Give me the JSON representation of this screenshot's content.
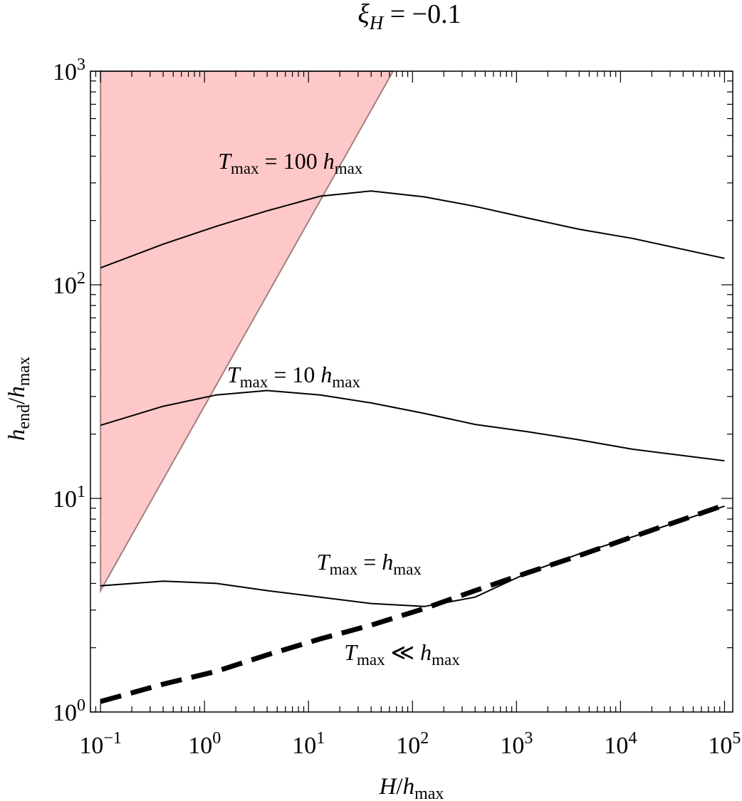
{
  "chart_data": {
    "type": "line",
    "title": "ξH = −0.1",
    "title_main": "ξ",
    "title_sub": "H",
    "title_rest": " = −0.1",
    "xlabel": "H/hmax",
    "ylabel": "hend/hmax",
    "x_scale": "log",
    "y_scale": "log",
    "xlim": [
      0.08,
      120000
    ],
    "ylim": [
      1,
      1000
    ],
    "x_ticks": [
      {
        "base": "10",
        "exp": "−1",
        "value": 0.1
      },
      {
        "base": "10",
        "exp": "0",
        "value": 1
      },
      {
        "base": "10",
        "exp": "1",
        "value": 10
      },
      {
        "base": "10",
        "exp": "2",
        "value": 100
      },
      {
        "base": "10",
        "exp": "3",
        "value": 1000
      },
      {
        "base": "10",
        "exp": "4",
        "value": 10000
      },
      {
        "base": "10",
        "exp": "5",
        "value": 100000
      }
    ],
    "y_ticks": [
      {
        "base": "10",
        "exp": "0",
        "value": 1
      },
      {
        "base": "10",
        "exp": "1",
        "value": 10
      },
      {
        "base": "10",
        "exp": "2",
        "value": 100
      },
      {
        "base": "10",
        "exp": "3",
        "value": 1000
      }
    ],
    "shaded_region": {
      "color": "#ffc8c8",
      "points": [
        [
          0.1,
          3.7
        ],
        [
          0.1,
          1000
        ],
        [
          65,
          1000
        ]
      ]
    },
    "series": [
      {
        "style": "solid",
        "points": [
          [
            0.1,
            120
          ],
          [
            0.4,
            155
          ],
          [
            1.3,
            188
          ],
          [
            4,
            222
          ],
          [
            13,
            260
          ],
          [
            40,
            275
          ],
          [
            130,
            258
          ],
          [
            400,
            233
          ],
          [
            1300,
            205
          ],
          [
            4000,
            182
          ],
          [
            13000,
            165
          ],
          [
            100000,
            133
          ]
        ]
      },
      {
        "style": "solid",
        "points": [
          [
            0.1,
            22
          ],
          [
            0.4,
            27
          ],
          [
            1.3,
            30.5
          ],
          [
            4,
            32
          ],
          [
            13,
            30.5
          ],
          [
            40,
            28
          ],
          [
            130,
            25
          ],
          [
            400,
            22.2
          ],
          [
            1300,
            20.5
          ],
          [
            4000,
            18.8
          ],
          [
            13000,
            17
          ],
          [
            100000,
            15
          ]
        ]
      },
      {
        "style": "solid",
        "points": [
          [
            0.1,
            3.9
          ],
          [
            0.4,
            4.1
          ],
          [
            1.3,
            4.0
          ],
          [
            4,
            3.7
          ],
          [
            13,
            3.45
          ],
          [
            40,
            3.22
          ],
          [
            130,
            3.12
          ],
          [
            400,
            3.45
          ],
          [
            1300,
            4.5
          ],
          [
            4000,
            5.5
          ],
          [
            13000,
            6.6
          ],
          [
            100000,
            9.2
          ]
        ]
      },
      {
        "style": "dashed",
        "points": [
          [
            0.1,
            1.12
          ],
          [
            0.4,
            1.35
          ],
          [
            1.3,
            1.55
          ],
          [
            4,
            1.85
          ],
          [
            13,
            2.2
          ],
          [
            40,
            2.55
          ],
          [
            130,
            3.05
          ],
          [
            400,
            3.7
          ],
          [
            1300,
            4.5
          ],
          [
            4000,
            5.4
          ],
          [
            13000,
            6.6
          ],
          [
            100000,
            9.3
          ]
        ]
      }
    ],
    "annotations": [
      {
        "main": "T",
        "sub": "max",
        "rest": " = 100 ",
        "var": "h",
        "var_sub": "max",
        "x": 1.35,
        "y": 350
      },
      {
        "main": "T",
        "sub": "max",
        "rest": " = 10 ",
        "var": "h",
        "var_sub": "max",
        "x": 1.65,
        "y": 35
      },
      {
        "main": "T",
        "sub": "max",
        "rest": " = ",
        "var": "h",
        "var_sub": "max",
        "x": 12,
        "y": 4.65
      },
      {
        "main": "T",
        "sub": "max",
        "rest": " ≪ ",
        "var": "h",
        "var_sub": "max",
        "x": 22,
        "y": 1.75
      }
    ]
  }
}
